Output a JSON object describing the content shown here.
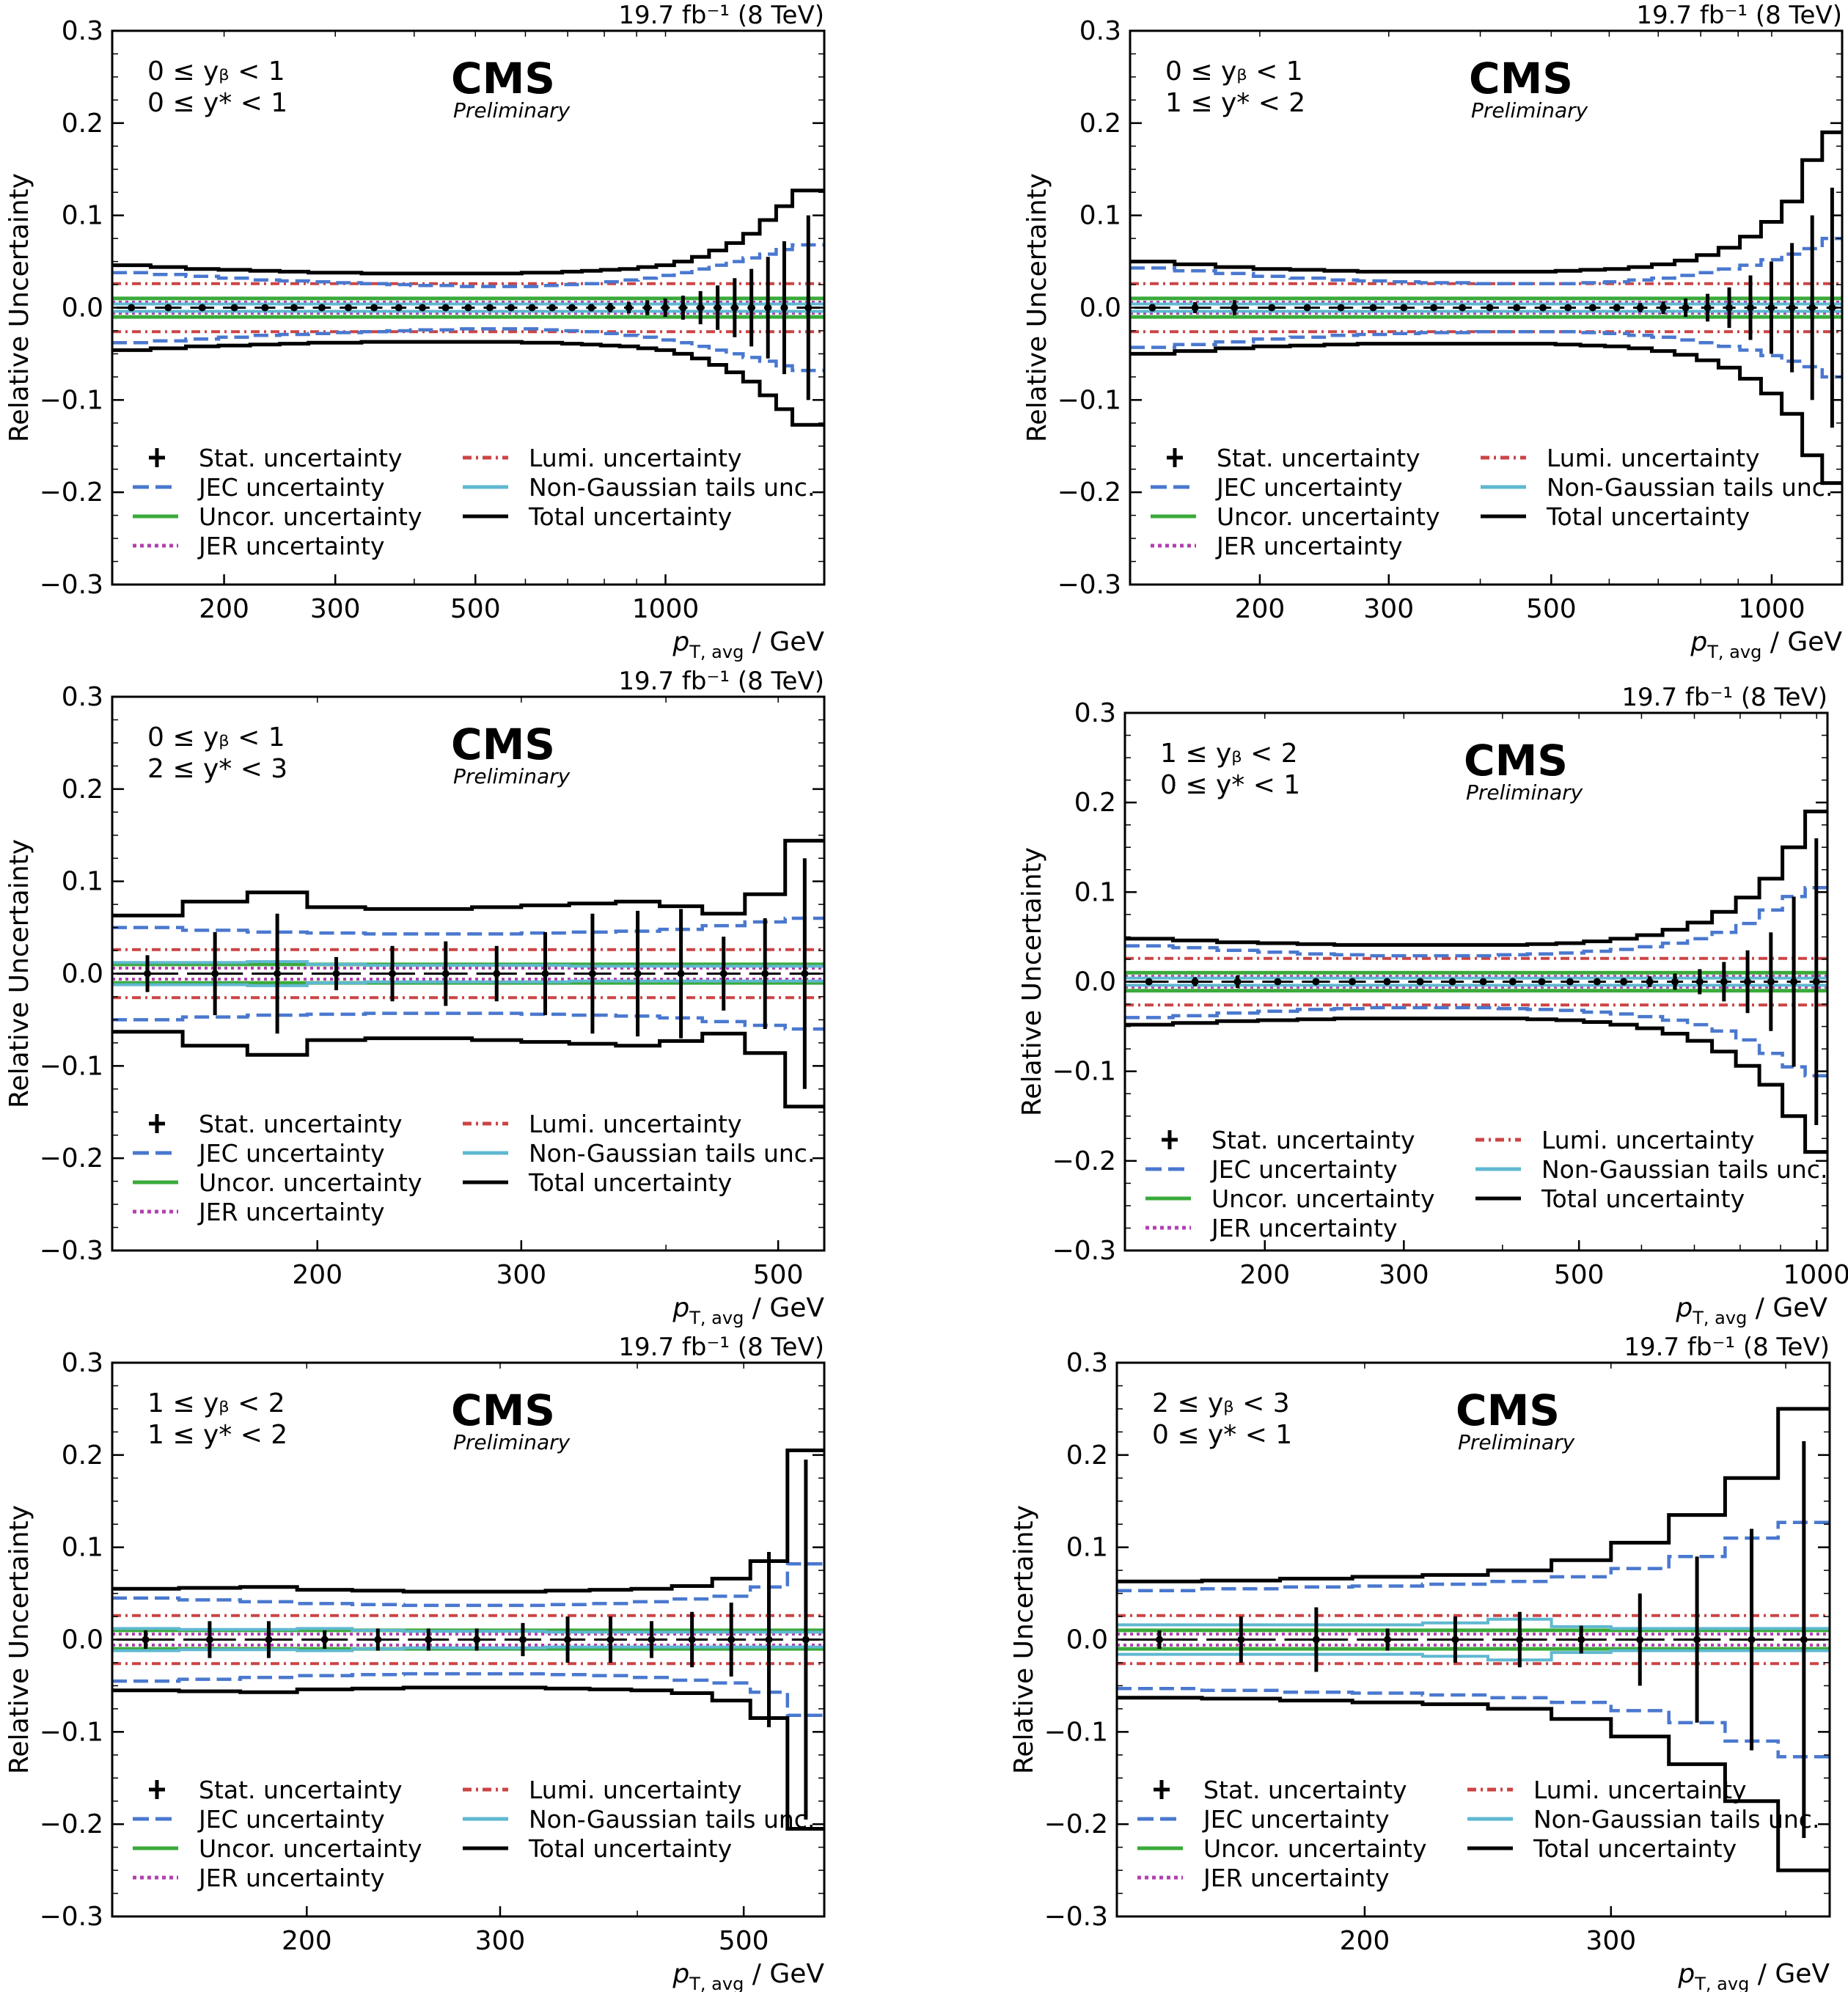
{
  "legend": {
    "stat": "Stat. uncertainty",
    "jec": "JEC uncertainty",
    "uncor": "Uncor. uncertainty",
    "jer": "JER uncertainty",
    "lumi": "Lumi. uncertainty",
    "ng": "Non-Gaussian tails unc.",
    "total": "Total uncertainty"
  },
  "colors": {
    "stat": "#000000",
    "jec": "#4a78cf",
    "uncor": "#3aaa3a",
    "jer": "#b040b0",
    "lumi": "#cc4444",
    "ng": "#5fb8d0",
    "total": "#000000"
  },
  "common": {
    "ylabel": "Relative Uncertainty",
    "xlabel_main": "p",
    "xlabel_sub": "T, avg",
    "xlabel_unit": " / GeV",
    "lumi": "19.7 fb⁻¹ (8 TeV)",
    "cms": "CMS",
    "prelim": "Preliminary"
  },
  "chart_data": [
    {
      "type": "line",
      "title": "",
      "range_yb": "0 ≤ y_b < 1",
      "range_ystar": "0 ≤ y* < 1",
      "range_line1": "0 ≤ yᵦ < 1",
      "range_line2": "0 ≤ y* < 1",
      "xlim": [
        133,
        1784
      ],
      "ylim": [
        -0.3,
        0.3
      ],
      "xticks": [
        200,
        300,
        500,
        1000
      ],
      "yticks": [
        -0.3,
        -0.2,
        -0.1,
        0.0,
        0.1,
        0.2,
        0.3
      ],
      "bins": [
        133,
        153,
        174,
        196,
        220,
        245,
        272,
        300,
        330,
        362,
        395,
        430,
        468,
        507,
        548,
        592,
        638,
        686,
        737,
        790,
        846,
        905,
        967,
        1032,
        1101,
        1172,
        1248,
        1327,
        1410,
        1497,
        1588,
        1784
      ],
      "total": [
        0.046,
        0.044,
        0.042,
        0.041,
        0.04,
        0.039,
        0.038,
        0.038,
        0.037,
        0.037,
        0.037,
        0.037,
        0.037,
        0.037,
        0.037,
        0.038,
        0.038,
        0.039,
        0.04,
        0.041,
        0.042,
        0.044,
        0.046,
        0.05,
        0.055,
        0.062,
        0.07,
        0.08,
        0.095,
        0.11,
        0.127
      ],
      "jec": [
        0.038,
        0.036,
        0.034,
        0.032,
        0.03,
        0.029,
        0.028,
        0.027,
        0.026,
        0.025,
        0.024,
        0.024,
        0.023,
        0.023,
        0.023,
        0.023,
        0.024,
        0.025,
        0.026,
        0.028,
        0.03,
        0.032,
        0.035,
        0.038,
        0.042,
        0.046,
        0.05,
        0.054,
        0.058,
        0.063,
        0.068
      ],
      "lumi": 0.026,
      "uncor": 0.01,
      "jer": 0.006,
      "ng": [
        0.004,
        0.004,
        0.004,
        0.004,
        0.004,
        0.004,
        0.004,
        0.004,
        0.004,
        0.004,
        0.004,
        0.004,
        0.004,
        0.004,
        0.004,
        0.004,
        0.004,
        0.004,
        0.004,
        0.004,
        0.004,
        0.004,
        0.004,
        0.004,
        0.004,
        0.004,
        0.004,
        0.004,
        0.004,
        0.004,
        0.004
      ],
      "stat": [
        0.002,
        0.002,
        0.002,
        0.002,
        0.002,
        0.002,
        0.002,
        0.002,
        0.002,
        0.002,
        0.002,
        0.002,
        0.002,
        0.002,
        0.002,
        0.003,
        0.003,
        0.003,
        0.004,
        0.005,
        0.006,
        0.008,
        0.01,
        0.013,
        0.018,
        0.024,
        0.032,
        0.042,
        0.055,
        0.072,
        0.1
      ]
    },
    {
      "type": "line",
      "title": "",
      "range_line1": "0 ≤ yᵦ < 1",
      "range_line2": "1 ≤ y* < 2",
      "xlim": [
        133,
        1248
      ],
      "ylim": [
        -0.3,
        0.3
      ],
      "xticks": [
        200,
        300,
        500,
        1000
      ],
      "yticks": [
        -0.3,
        -0.2,
        -0.1,
        0.0,
        0.1,
        0.2,
        0.3
      ],
      "bins": [
        133,
        153,
        174,
        196,
        220,
        245,
        272,
        300,
        330,
        362,
        395,
        430,
        468,
        507,
        548,
        592,
        638,
        686,
        737,
        790,
        846,
        905,
        967,
        1032,
        1101,
        1172,
        1248
      ],
      "total": [
        0.05,
        0.047,
        0.044,
        0.042,
        0.041,
        0.04,
        0.039,
        0.039,
        0.039,
        0.039,
        0.039,
        0.039,
        0.039,
        0.04,
        0.041,
        0.042,
        0.044,
        0.047,
        0.051,
        0.057,
        0.065,
        0.077,
        0.093,
        0.115,
        0.16,
        0.19
      ],
      "jec": [
        0.043,
        0.04,
        0.037,
        0.034,
        0.032,
        0.03,
        0.029,
        0.028,
        0.027,
        0.027,
        0.026,
        0.026,
        0.026,
        0.026,
        0.027,
        0.028,
        0.03,
        0.032,
        0.035,
        0.038,
        0.042,
        0.046,
        0.052,
        0.058,
        0.064,
        0.075
      ],
      "lumi": 0.026,
      "uncor": 0.01,
      "jer": 0.006,
      "ng": [
        0.004,
        0.004,
        0.004,
        0.004,
        0.004,
        0.004,
        0.004,
        0.004,
        0.004,
        0.004,
        0.004,
        0.004,
        0.004,
        0.004,
        0.004,
        0.004,
        0.004,
        0.004,
        0.004,
        0.004,
        0.004,
        0.004,
        0.004,
        0.004,
        0.004,
        0.004
      ],
      "stat": [
        0.004,
        0.006,
        0.008,
        0.003,
        0.003,
        0.003,
        0.003,
        0.003,
        0.003,
        0.003,
        0.003,
        0.003,
        0.003,
        0.003,
        0.003,
        0.004,
        0.005,
        0.007,
        0.01,
        0.015,
        0.022,
        0.035,
        0.05,
        0.07,
        0.1,
        0.13
      ]
    },
    {
      "type": "line",
      "title": "",
      "range_line1": "0 ≤ yᵦ < 1",
      "range_line2": "2 ≤ y* < 3",
      "xlim": [
        133,
        548
      ],
      "ylim": [
        -0.3,
        0.3
      ],
      "xticks": [
        200,
        300,
        500
      ],
      "yticks": [
        -0.3,
        -0.2,
        -0.1,
        0.0,
        0.1,
        0.2,
        0.3
      ],
      "bins": [
        133,
        153,
        174,
        196,
        220,
        245,
        272,
        300,
        330,
        362,
        395,
        430,
        468,
        507,
        548
      ],
      "total": [
        0.063,
        0.078,
        0.088,
        0.072,
        0.07,
        0.07,
        0.072,
        0.074,
        0.076,
        0.078,
        0.073,
        0.065,
        0.086,
        0.144
      ],
      "jec": [
        0.05,
        0.047,
        0.045,
        0.044,
        0.043,
        0.043,
        0.043,
        0.044,
        0.045,
        0.046,
        0.048,
        0.052,
        0.056,
        0.06
      ],
      "lumi": 0.026,
      "uncor": 0.01,
      "jer": 0.006,
      "ng": [
        0.012,
        0.012,
        0.013,
        0.01,
        0.009,
        0.009,
        0.009,
        0.009,
        0.008,
        0.008,
        0.008,
        0.008,
        0.008,
        0.008
      ],
      "stat": [
        0.02,
        0.045,
        0.065,
        0.018,
        0.03,
        0.035,
        0.03,
        0.045,
        0.065,
        0.068,
        0.07,
        0.04,
        0.06,
        0.125
      ]
    },
    {
      "type": "line",
      "title": "",
      "range_line1": "1 ≤ yᵦ < 2",
      "range_line2": "0 ≤ y* < 1",
      "xlim": [
        133,
        1032
      ],
      "ylim": [
        -0.3,
        0.3
      ],
      "xticks": [
        200,
        300,
        500,
        1000
      ],
      "yticks": [
        -0.3,
        -0.2,
        -0.1,
        0.0,
        0.1,
        0.2,
        0.3
      ],
      "bins": [
        133,
        153,
        174,
        196,
        220,
        245,
        272,
        300,
        330,
        362,
        395,
        430,
        468,
        507,
        548,
        592,
        638,
        686,
        737,
        790,
        846,
        905,
        967,
        1032
      ],
      "total": [
        0.048,
        0.046,
        0.044,
        0.043,
        0.042,
        0.041,
        0.041,
        0.041,
        0.041,
        0.041,
        0.041,
        0.042,
        0.043,
        0.045,
        0.048,
        0.052,
        0.058,
        0.066,
        0.078,
        0.094,
        0.115,
        0.15,
        0.19
      ],
      "jec": [
        0.04,
        0.038,
        0.035,
        0.033,
        0.031,
        0.03,
        0.029,
        0.029,
        0.029,
        0.029,
        0.03,
        0.031,
        0.032,
        0.034,
        0.036,
        0.039,
        0.043,
        0.048,
        0.055,
        0.065,
        0.08,
        0.095,
        0.105
      ],
      "lumi": 0.026,
      "uncor": 0.01,
      "jer": 0.006,
      "ng": [
        0.004,
        0.004,
        0.004,
        0.004,
        0.004,
        0.004,
        0.004,
        0.004,
        0.004,
        0.004,
        0.004,
        0.004,
        0.004,
        0.004,
        0.004,
        0.004,
        0.004,
        0.004,
        0.004,
        0.004,
        0.004,
        0.004,
        0.004
      ],
      "stat": [
        0.003,
        0.005,
        0.007,
        0.003,
        0.003,
        0.003,
        0.003,
        0.003,
        0.003,
        0.003,
        0.003,
        0.003,
        0.003,
        0.003,
        0.004,
        0.006,
        0.009,
        0.014,
        0.022,
        0.035,
        0.055,
        0.095,
        0.16
      ]
    },
    {
      "type": "line",
      "title": "",
      "range_line1": "1 ≤ yᵦ < 2",
      "range_line2": "1 ≤ y* < 2",
      "xlim": [
        133,
        592
      ],
      "ylim": [
        -0.3,
        0.3
      ],
      "xticks": [
        200,
        300,
        500
      ],
      "yticks": [
        -0.3,
        -0.2,
        -0.1,
        0.0,
        0.1,
        0.2,
        0.3
      ],
      "bins": [
        133,
        153,
        174,
        196,
        220,
        245,
        272,
        300,
        330,
        362,
        395,
        430,
        468,
        507,
        548,
        592
      ],
      "total": [
        0.055,
        0.056,
        0.057,
        0.054,
        0.053,
        0.052,
        0.052,
        0.052,
        0.053,
        0.054,
        0.055,
        0.058,
        0.066,
        0.085,
        0.205
      ],
      "jec": [
        0.045,
        0.043,
        0.041,
        0.039,
        0.038,
        0.037,
        0.037,
        0.037,
        0.038,
        0.039,
        0.041,
        0.044,
        0.047,
        0.057,
        0.082
      ],
      "lumi": 0.026,
      "uncor": 0.01,
      "jer": 0.006,
      "ng": [
        0.012,
        0.011,
        0.011,
        0.012,
        0.01,
        0.009,
        0.009,
        0.009,
        0.008,
        0.008,
        0.008,
        0.008,
        0.008,
        0.008,
        0.008
      ],
      "stat": [
        0.01,
        0.02,
        0.02,
        0.01,
        0.012,
        0.012,
        0.012,
        0.018,
        0.025,
        0.025,
        0.02,
        0.03,
        0.04,
        0.095,
        0.195
      ]
    },
    {
      "type": "line",
      "title": "",
      "range_line1": "2 ≤ yᵦ < 3",
      "range_line2": "0 ≤ y* < 1",
      "xlim": [
        133,
        430
      ],
      "ylim": [
        -0.3,
        0.3
      ],
      "xticks": [
        200,
        300
      ],
      "yticks": [
        -0.3,
        -0.2,
        -0.1,
        0.0,
        0.1,
        0.2,
        0.3
      ],
      "bins": [
        133,
        153,
        174,
        196,
        220,
        245,
        272,
        300,
        330,
        362,
        395,
        430
      ],
      "total": [
        0.063,
        0.064,
        0.066,
        0.068,
        0.07,
        0.075,
        0.086,
        0.105,
        0.135,
        0.175,
        0.25
      ],
      "jec": [
        0.053,
        0.055,
        0.057,
        0.058,
        0.06,
        0.063,
        0.068,
        0.077,
        0.09,
        0.11,
        0.127
      ],
      "lumi": 0.026,
      "uncor": 0.01,
      "jer": 0.006,
      "ng": [
        0.016,
        0.016,
        0.016,
        0.016,
        0.018,
        0.022,
        0.014,
        0.012,
        0.012,
        0.012,
        0.012
      ],
      "stat": [
        0.01,
        0.025,
        0.035,
        0.012,
        0.025,
        0.03,
        0.015,
        0.05,
        0.09,
        0.12,
        0.215
      ]
    }
  ]
}
